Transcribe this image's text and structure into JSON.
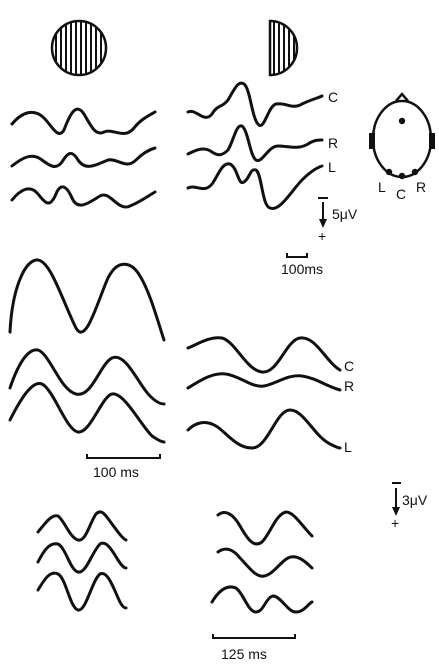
{
  "channel_labels": {
    "central": "C",
    "right": "R",
    "left": "L"
  },
  "head_map_labels": {
    "left": "L",
    "central": "C",
    "right": "R"
  },
  "scales": {
    "time_top": "100ms",
    "time_middle": "100 ms",
    "time_bottom": "125 ms",
    "amplitude_top": "5μV",
    "amplitude_bottom": "3μV"
  },
  "polarity": {
    "negative": "−",
    "positive": "+"
  },
  "stimuli": [
    {
      "shape": "full-field striped circle"
    },
    {
      "shape": "half-field striped semicircle"
    }
  ]
}
